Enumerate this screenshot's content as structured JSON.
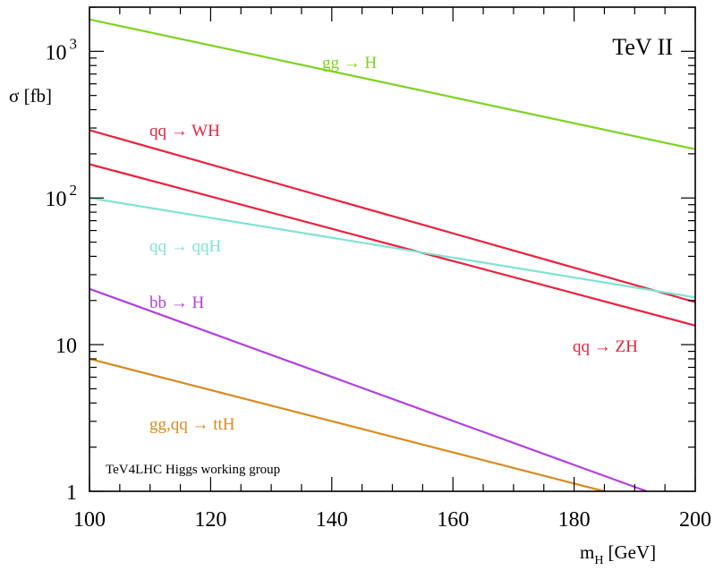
{
  "chart_data": {
    "type": "line",
    "title": "TeV II",
    "annotation": "TeV4LHC Higgs working group",
    "xlabel": {
      "main": "m",
      "sub": "H",
      "unit": "[GeV]"
    },
    "ylabel": "σ [fb]",
    "xlim": [
      100,
      200
    ],
    "ylim": [
      1,
      2000
    ],
    "yscale": "log",
    "x_ticks": [
      100,
      120,
      140,
      160,
      180,
      200
    ],
    "x_tick_labels": [
      "100",
      "120",
      "140",
      "160",
      "180",
      "200"
    ],
    "y_tick_labels": [
      {
        "value": 1,
        "base": "1",
        "exp": ""
      },
      {
        "value": 10,
        "base": "10",
        "exp": ""
      },
      {
        "value": 100,
        "base": "10",
        "exp": "2"
      },
      {
        "value": 1000,
        "base": "10",
        "exp": "3"
      }
    ],
    "grid": false,
    "series": [
      {
        "name": "gg → H",
        "color": "#7ed321",
        "x": [
          100,
          200
        ],
        "y": [
          1650,
          215
        ]
      },
      {
        "name": "qq → WH",
        "color": "#e8233f",
        "x": [
          100,
          200
        ],
        "y": [
          290,
          19.5
        ]
      },
      {
        "name": "qq → ZH",
        "color": "#e8233f",
        "x": [
          100,
          200
        ],
        "y": [
          170,
          13.5
        ]
      },
      {
        "name": "qq → qqH",
        "color": "#7fe3d3",
        "x": [
          100,
          200
        ],
        "y": [
          100,
          21
        ]
      },
      {
        "name": "bb → H",
        "color": "#b43ee0",
        "x": [
          100,
          192
        ],
        "y": [
          24,
          1
        ]
      },
      {
        "name": "gg,qq → ttH",
        "color": "#d98b1f",
        "x": [
          100,
          185
        ],
        "y": [
          8,
          1
        ]
      }
    ]
  }
}
